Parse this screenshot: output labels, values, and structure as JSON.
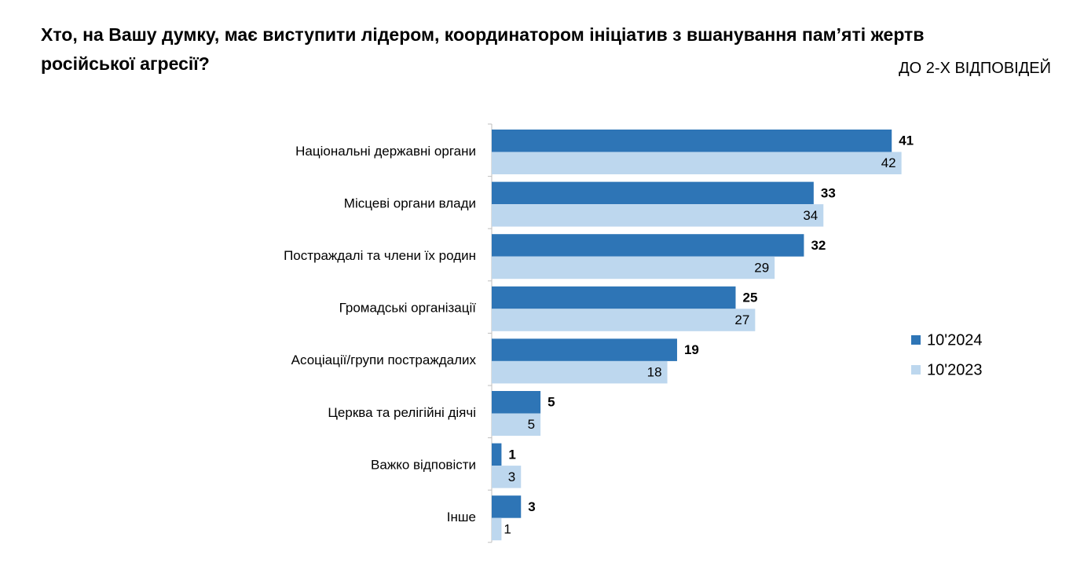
{
  "chart_data": {
    "type": "bar",
    "orientation": "horizontal",
    "title": "Хто, на Вашу думку, має виступити лідером, координатором ініціатив з вшанування пам’яті жертв російської агресії?",
    "subtitle": "ДО 2-Х ВІДПОВІДЕЙ",
    "categories": [
      "Національні державні органи",
      "Місцеві органи влади",
      "Постраждалі та члени їх родин",
      "Громадські організації",
      "Асоціації/групи постраждалих",
      "Церква та релігійні діячі",
      "Важко відповісти",
      "Інше"
    ],
    "series": [
      {
        "name": "10'2024",
        "color": "#2e75b6",
        "values": [
          41,
          33,
          32,
          25,
          19,
          5,
          1,
          3
        ]
      },
      {
        "name": "10'2023",
        "color": "#bdd7ee",
        "values": [
          42,
          34,
          29,
          27,
          18,
          5,
          3,
          1
        ]
      }
    ]
  }
}
